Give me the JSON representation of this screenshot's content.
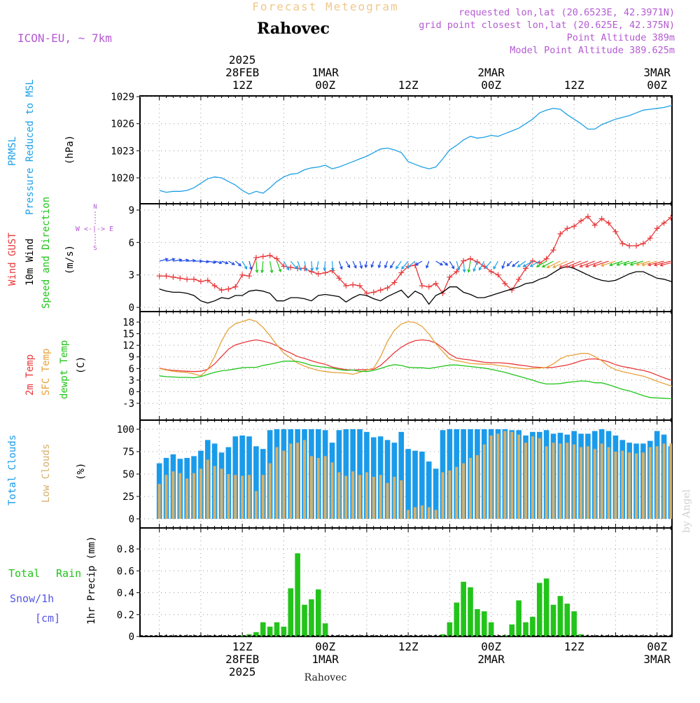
{
  "header": {
    "subtitle": "Forecast Meteogram",
    "location": "Rahovec",
    "model": "ICON-EU, ~ 7km",
    "requested": "requested lon,lat (20.6523E, 42.3971N)",
    "grid_point": "grid point closest lon,lat (20.625E, 42.375N)",
    "point_alt": "Point Altitude 389m",
    "model_alt": "Model Point Altitude 389.625m",
    "footer_location": "Rahovec",
    "watermark": "by Angel"
  },
  "time_axis": {
    "top_labels": [
      {
        "t": 12,
        "lines": [
          "2025",
          "28FEB",
          "12Z"
        ]
      },
      {
        "t": 24,
        "lines": [
          "1MAR",
          "00Z"
        ]
      },
      {
        "t": 36,
        "lines": [
          "12Z"
        ]
      },
      {
        "t": 48,
        "lines": [
          "2MAR",
          "00Z"
        ]
      },
      {
        "t": 60,
        "lines": [
          "12Z"
        ]
      },
      {
        "t": 72,
        "lines": [
          "3MAR",
          "00Z"
        ]
      }
    ],
    "bottom_labels": [
      {
        "t": 12,
        "lines": [
          "12Z",
          "28FEB",
          "2025"
        ]
      },
      {
        "t": 24,
        "lines": [
          "00Z",
          "1MAR"
        ]
      },
      {
        "t": 36,
        "lines": [
          "12Z"
        ]
      },
      {
        "t": 48,
        "lines": [
          "00Z",
          "2MAR"
        ]
      },
      {
        "t": 60,
        "lines": [
          "12Z"
        ]
      },
      {
        "t": 72,
        "lines": [
          "00Z",
          "3MAR"
        ]
      }
    ]
  },
  "panel_labels": {
    "pressure": {
      "l1": "PRMSL",
      "l2": "Pressure Reduced to MSL",
      "unit": "(hPa)"
    },
    "wind": {
      "l1": "Wind GUST",
      "l2": "10m Wind",
      "l3": "Speed and Direction",
      "unit": "(m/s)",
      "compass_n": "N",
      "compass_s": "S",
      "compass_ew": "W <-|-> E"
    },
    "temp": {
      "l1": "2m Temp",
      "l2": "SFC Temp",
      "l3": "dewpt Temp",
      "unit": "(C)"
    },
    "cloud": {
      "l1": "Total Clouds",
      "l2": "Low Clouds",
      "unit": "(%)"
    },
    "precip": {
      "l1": "Total",
      "l1b": "Rain",
      "l2": "Snow/1h",
      "l3": "[cm]",
      "unit": "1hr Precip (mm)"
    }
  },
  "colors": {
    "pressure": "#1ea0e6",
    "gust": "#e8383a",
    "wind": "#000000",
    "t2m": "#e8383a",
    "tsfc": "#e6a23c",
    "dewpt": "#22c41a",
    "total_cloud": "#1a9bea",
    "low_cloud": "#d6b06a",
    "rain": "#22c41a",
    "snow": "#5555e0",
    "header_purple": "#b45ad2",
    "header_orange": "#f0c88c"
  },
  "chart_data": [
    {
      "type": "line",
      "title": "PRMSL Pressure Reduced to MSL",
      "ylabel": "hPa",
      "ylim": [
        1018.3,
        1029.3
      ],
      "yticks": [
        1020,
        1023,
        1026,
        1029
      ],
      "x_start_hour": 0,
      "x_step_hours": 1,
      "series": [
        {
          "name": "PRMSL",
          "values": [
            1018.6,
            1018.4,
            1018.5,
            1018.5,
            1018.6,
            1018.9,
            1019.4,
            1019.9,
            1020.1,
            1020.0,
            1019.6,
            1019.2,
            1018.6,
            1018.2,
            1018.5,
            1018.3,
            1018.9,
            1019.6,
            1020.1,
            1020.4,
            1020.5,
            1020.9,
            1021.1,
            1021.2,
            1021.4,
            1021.0,
            1021.2,
            1021.5,
            1021.8,
            1022.1,
            1022.4,
            1022.8,
            1023.2,
            1023.3,
            1023.1,
            1022.8,
            1021.8,
            1021.5,
            1021.2,
            1021.0,
            1021.2,
            1022.1,
            1023.1,
            1023.6,
            1024.2,
            1024.6,
            1024.4,
            1024.5,
            1024.7,
            1024.6,
            1024.9,
            1025.2,
            1025.5,
            1026.0,
            1026.5,
            1027.2,
            1027.5,
            1027.7,
            1027.6,
            1027.0,
            1026.5,
            1026.0,
            1025.4,
            1025.4,
            1025.9,
            1026.2,
            1026.5,
            1026.7,
            1026.9,
            1027.2,
            1027.5,
            1027.6,
            1027.7,
            1027.8,
            1028.0,
            1028.4
          ]
        }
      ]
    },
    {
      "type": "line",
      "title": "Wind GUST / 10m Wind",
      "ylabel": "m/s",
      "ylim": [
        -0.3,
        9.6
      ],
      "yticks": [
        0,
        3,
        6,
        9
      ],
      "x_start_hour": 0,
      "x_step_hours": 1,
      "series": [
        {
          "name": "Wind GUST",
          "values": [
            2.9,
            2.9,
            2.8,
            2.7,
            2.6,
            2.6,
            2.4,
            2.5,
            2.0,
            1.6,
            1.7,
            1.9,
            3.0,
            2.9,
            4.6,
            4.7,
            4.8,
            4.5,
            3.8,
            3.7,
            3.6,
            3.6,
            3.3,
            3.1,
            3.2,
            3.4,
            2.7,
            2.0,
            2.1,
            2.0,
            1.3,
            1.4,
            1.6,
            1.8,
            2.3,
            3.2,
            3.8,
            3.9,
            2.0,
            1.9,
            2.2,
            1.3,
            2.8,
            3.3,
            4.3,
            4.5,
            4.2,
            3.8,
            3.3,
            3.0,
            2.2,
            1.6,
            2.6,
            3.6,
            4.3,
            4.1,
            4.5,
            5.3,
            6.8,
            7.3,
            7.5,
            8.0,
            8.4,
            7.6,
            8.2,
            7.8,
            7.0,
            5.9,
            5.7,
            5.7,
            5.9,
            6.4,
            7.3,
            7.8,
            8.3,
            8.9,
            8.6,
            8.2,
            7.4,
            7.3,
            6.3,
            6.3,
            5.3,
            5.4
          ]
        },
        {
          "name": "10m Wind",
          "values": [
            1.7,
            1.5,
            1.4,
            1.4,
            1.3,
            1.1,
            0.6,
            0.4,
            0.6,
            0.9,
            0.8,
            1.1,
            1.1,
            1.5,
            1.6,
            1.5,
            1.3,
            0.6,
            0.6,
            0.9,
            0.9,
            0.8,
            0.6,
            1.1,
            1.2,
            1.1,
            1.0,
            0.5,
            0.9,
            1.2,
            1.1,
            0.8,
            0.6,
            1.0,
            1.3,
            1.6,
            0.9,
            1.5,
            1.2,
            0.3,
            1.1,
            1.4,
            1.9,
            1.9,
            1.4,
            1.2,
            0.9,
            0.9,
            1.1,
            1.3,
            1.5,
            1.7,
            1.9,
            2.2,
            2.3,
            2.6,
            2.8,
            3.2,
            3.6,
            3.8,
            3.6,
            3.3,
            3.0,
            2.7,
            2.5,
            2.4,
            2.5,
            2.8,
            3.1,
            3.3,
            3.3,
            3.0,
            2.7,
            2.6,
            2.4,
            2.1,
            1.9,
            1.7,
            1.6
          ]
        }
      ],
      "wind_direction_deg": [
        255,
        255,
        260,
        262,
        265,
        270,
        275,
        280,
        285,
        290,
        300,
        310,
        330,
        345,
        355,
        5,
        350,
        340,
        330,
        320,
        340,
        350,
        355,
        10,
        5,
        355,
        340,
        330,
        335,
        345,
        10,
        20,
        15,
        20,
        30,
        35,
        40,
        50,
        60,
        20,
        300,
        310,
        330,
        345,
        355,
        10,
        20,
        30,
        40,
        30,
        20,
        45,
        50,
        55,
        60,
        60,
        60,
        62,
        64,
        66,
        67,
        68,
        70,
        70,
        71,
        72,
        72,
        72,
        73,
        74,
        74,
        75,
        75,
        76,
        76,
        76
      ]
    },
    {
      "type": "line",
      "title": "2m Temp / SFC Temp / dewpt Temp",
      "ylabel": "C",
      "ylim": [
        -3.6,
        19.8
      ],
      "yticks": [
        -3,
        0,
        3,
        6,
        9,
        12,
        15,
        18
      ],
      "x_start_hour": 0,
      "x_step_hours": 1,
      "series": [
        {
          "name": "2m Temp",
          "values": [
            6.1,
            5.7,
            5.5,
            5.4,
            5.3,
            5.2,
            5.3,
            5.8,
            7.2,
            9.1,
            11.0,
            12.1,
            12.6,
            13.1,
            13.4,
            13.1,
            12.6,
            11.9,
            10.8,
            10.0,
            9.1,
            8.6,
            8.0,
            7.5,
            7.1,
            6.4,
            6.0,
            5.7,
            5.6,
            5.7,
            5.7,
            5.8,
            6.8,
            8.4,
            10.1,
            11.5,
            12.5,
            13.2,
            13.4,
            13.2,
            12.6,
            11.3,
            9.7,
            8.7,
            8.4,
            8.2,
            7.9,
            7.6,
            7.5,
            7.5,
            7.4,
            7.2,
            6.9,
            6.7,
            6.4,
            6.3,
            6.2,
            6.3,
            6.6,
            6.9,
            7.4,
            8.0,
            8.4,
            8.5,
            8.2,
            7.7,
            7.0,
            6.5,
            6.2,
            5.8,
            5.5,
            5.0,
            4.3,
            3.6,
            3.0,
            2.6,
            2.3,
            2.0,
            1.7,
            1.3,
            0.5
          ]
        },
        {
          "name": "SFC Temp",
          "values": [
            6.0,
            5.6,
            5.3,
            5.1,
            5.0,
            4.6,
            4.1,
            5.8,
            9.1,
            13.1,
            16.2,
            17.6,
            18.1,
            18.7,
            18.2,
            16.6,
            14.5,
            12.1,
            10.0,
            8.7,
            7.4,
            6.6,
            6.0,
            5.5,
            5.2,
            5.0,
            4.9,
            4.8,
            4.5,
            5.0,
            5.6,
            6.1,
            9.0,
            13.0,
            15.9,
            17.5,
            18.1,
            17.9,
            16.9,
            14.9,
            12.4,
            10.4,
            8.5,
            8.0,
            7.7,
            7.3,
            7.2,
            7.1,
            7.1,
            6.8,
            6.6,
            6.3,
            6.1,
            5.9,
            6.0,
            6.1,
            6.3,
            7.2,
            8.5,
            9.3,
            9.5,
            9.9,
            9.9,
            9.1,
            8.0,
            6.6,
            5.7,
            5.2,
            4.8,
            4.4,
            4.0,
            3.4,
            2.7,
            2.1,
            1.5,
            0.9,
            0.4,
            0.0,
            -0.5,
            -0.9
          ]
        },
        {
          "name": "dewpt Temp",
          "values": [
            4.1,
            3.9,
            3.8,
            3.7,
            3.7,
            3.6,
            3.9,
            4.5,
            5.0,
            5.4,
            5.6,
            5.9,
            6.2,
            6.3,
            6.3,
            6.8,
            7.1,
            7.5,
            7.9,
            7.9,
            7.8,
            7.4,
            6.8,
            6.5,
            6.3,
            6.1,
            5.7,
            5.5,
            5.6,
            5.3,
            5.2,
            5.5,
            6.0,
            6.6,
            7.0,
            6.8,
            6.3,
            6.2,
            6.2,
            6.0,
            6.3,
            6.6,
            6.9,
            6.9,
            6.7,
            6.5,
            6.3,
            6.1,
            5.8,
            5.4,
            5.0,
            4.5,
            4.0,
            3.5,
            3.0,
            2.4,
            2.0,
            2.0,
            2.1,
            2.4,
            2.6,
            2.8,
            2.7,
            2.3,
            2.3,
            1.8,
            1.2,
            0.6,
            0.2,
            -0.4,
            -1.0,
            -1.5,
            -1.6,
            -1.7,
            -1.8,
            -1.9,
            -2.0,
            -2.2
          ]
        }
      ]
    },
    {
      "type": "bar",
      "title": "Total Clouds / Low Clouds",
      "ylabel": "%",
      "ylim": [
        -5,
        106
      ],
      "yticks": [
        0,
        25,
        50,
        75,
        100
      ],
      "x_start_hour": 0,
      "x_step_hours": 1,
      "series": [
        {
          "name": "Total Clouds",
          "values": [
            62,
            68,
            72,
            67,
            68,
            70,
            76,
            88,
            84,
            74,
            80,
            92,
            93,
            92,
            81,
            78,
            99,
            100,
            100,
            100,
            100,
            100,
            100,
            100,
            99,
            85,
            99,
            100,
            100,
            100,
            97,
            91,
            92,
            88,
            85,
            97,
            78,
            76,
            75,
            64,
            56,
            99,
            100,
            100,
            100,
            100,
            100,
            100,
            100,
            100,
            100,
            99,
            99,
            93,
            97,
            97,
            99,
            95,
            96,
            94,
            98,
            95,
            95,
            98,
            100,
            98,
            93,
            88,
            85,
            84,
            84,
            87,
            98,
            94,
            81,
            80,
            60,
            25,
            3,
            5,
            7,
            1,
            0
          ]
        },
        {
          "name": "Low Clouds",
          "values": [
            39,
            49,
            53,
            51,
            45,
            51,
            56,
            66,
            59,
            56,
            50,
            49,
            48,
            49,
            31,
            49,
            62,
            80,
            76,
            84,
            85,
            88,
            70,
            68,
            70,
            63,
            52,
            48,
            53,
            49,
            52,
            47,
            49,
            40,
            47,
            43,
            10,
            13,
            15,
            13,
            10,
            52,
            54,
            58,
            62,
            68,
            71,
            83,
            93,
            95,
            98,
            97,
            94,
            85,
            92,
            90,
            81,
            85,
            84,
            85,
            83,
            80,
            81,
            78,
            84,
            80,
            75,
            76,
            74,
            73,
            74,
            80,
            81,
            84,
            84,
            72,
            47,
            25,
            2,
            4,
            6,
            0,
            0
          ]
        }
      ]
    },
    {
      "type": "bar",
      "title": "1hr Precip",
      "ylabel": "1hr Precip (mm)",
      "ylim": [
        0,
        0.99
      ],
      "yticks": [
        0,
        0.2,
        0.4,
        0.6,
        0.8
      ],
      "x_start_hour": 0,
      "x_step_hours": 1,
      "series": [
        {
          "name": "Total Rain",
          "values": [
            0,
            0,
            0,
            0,
            0,
            0,
            0,
            0,
            0,
            0,
            0,
            0,
            0.01,
            0.02,
            0.04,
            0.13,
            0.09,
            0.13,
            0.09,
            0.44,
            0.76,
            0.29,
            0.34,
            0.43,
            0.12,
            0,
            0,
            0,
            0,
            0,
            0,
            0,
            0,
            0,
            0,
            0,
            0,
            0,
            0,
            0,
            0,
            0.02,
            0.13,
            0.31,
            0.5,
            0.45,
            0.25,
            0.23,
            0.13,
            0,
            0.01,
            0.11,
            0.33,
            0.13,
            0.18,
            0.49,
            0.53,
            0.29,
            0.37,
            0.3,
            0.23,
            0.02,
            0,
            0,
            0,
            0,
            0,
            0,
            0,
            0,
            0,
            0,
            0,
            0,
            0,
            0,
            0,
            0,
            0,
            0,
            0,
            0,
            0
          ]
        },
        {
          "name": "Snow/1h",
          "values": [
            0,
            0,
            0,
            0,
            0,
            0,
            0,
            0,
            0,
            0,
            0,
            0,
            0,
            0,
            0,
            0,
            0,
            0,
            0,
            0,
            0,
            0,
            0,
            0,
            0,
            0,
            0,
            0,
            0,
            0,
            0,
            0,
            0,
            0,
            0,
            0,
            0,
            0,
            0,
            0,
            0,
            0,
            0,
            0,
            0,
            0,
            0,
            0,
            0,
            0,
            0,
            0,
            0,
            0,
            0,
            0,
            0,
            0,
            0,
            0,
            0,
            0,
            0,
            0,
            0,
            0,
            0,
            0,
            0,
            0,
            0,
            0,
            0,
            0,
            0,
            0,
            0,
            0,
            0,
            0,
            0,
            0,
            0
          ]
        }
      ]
    }
  ]
}
